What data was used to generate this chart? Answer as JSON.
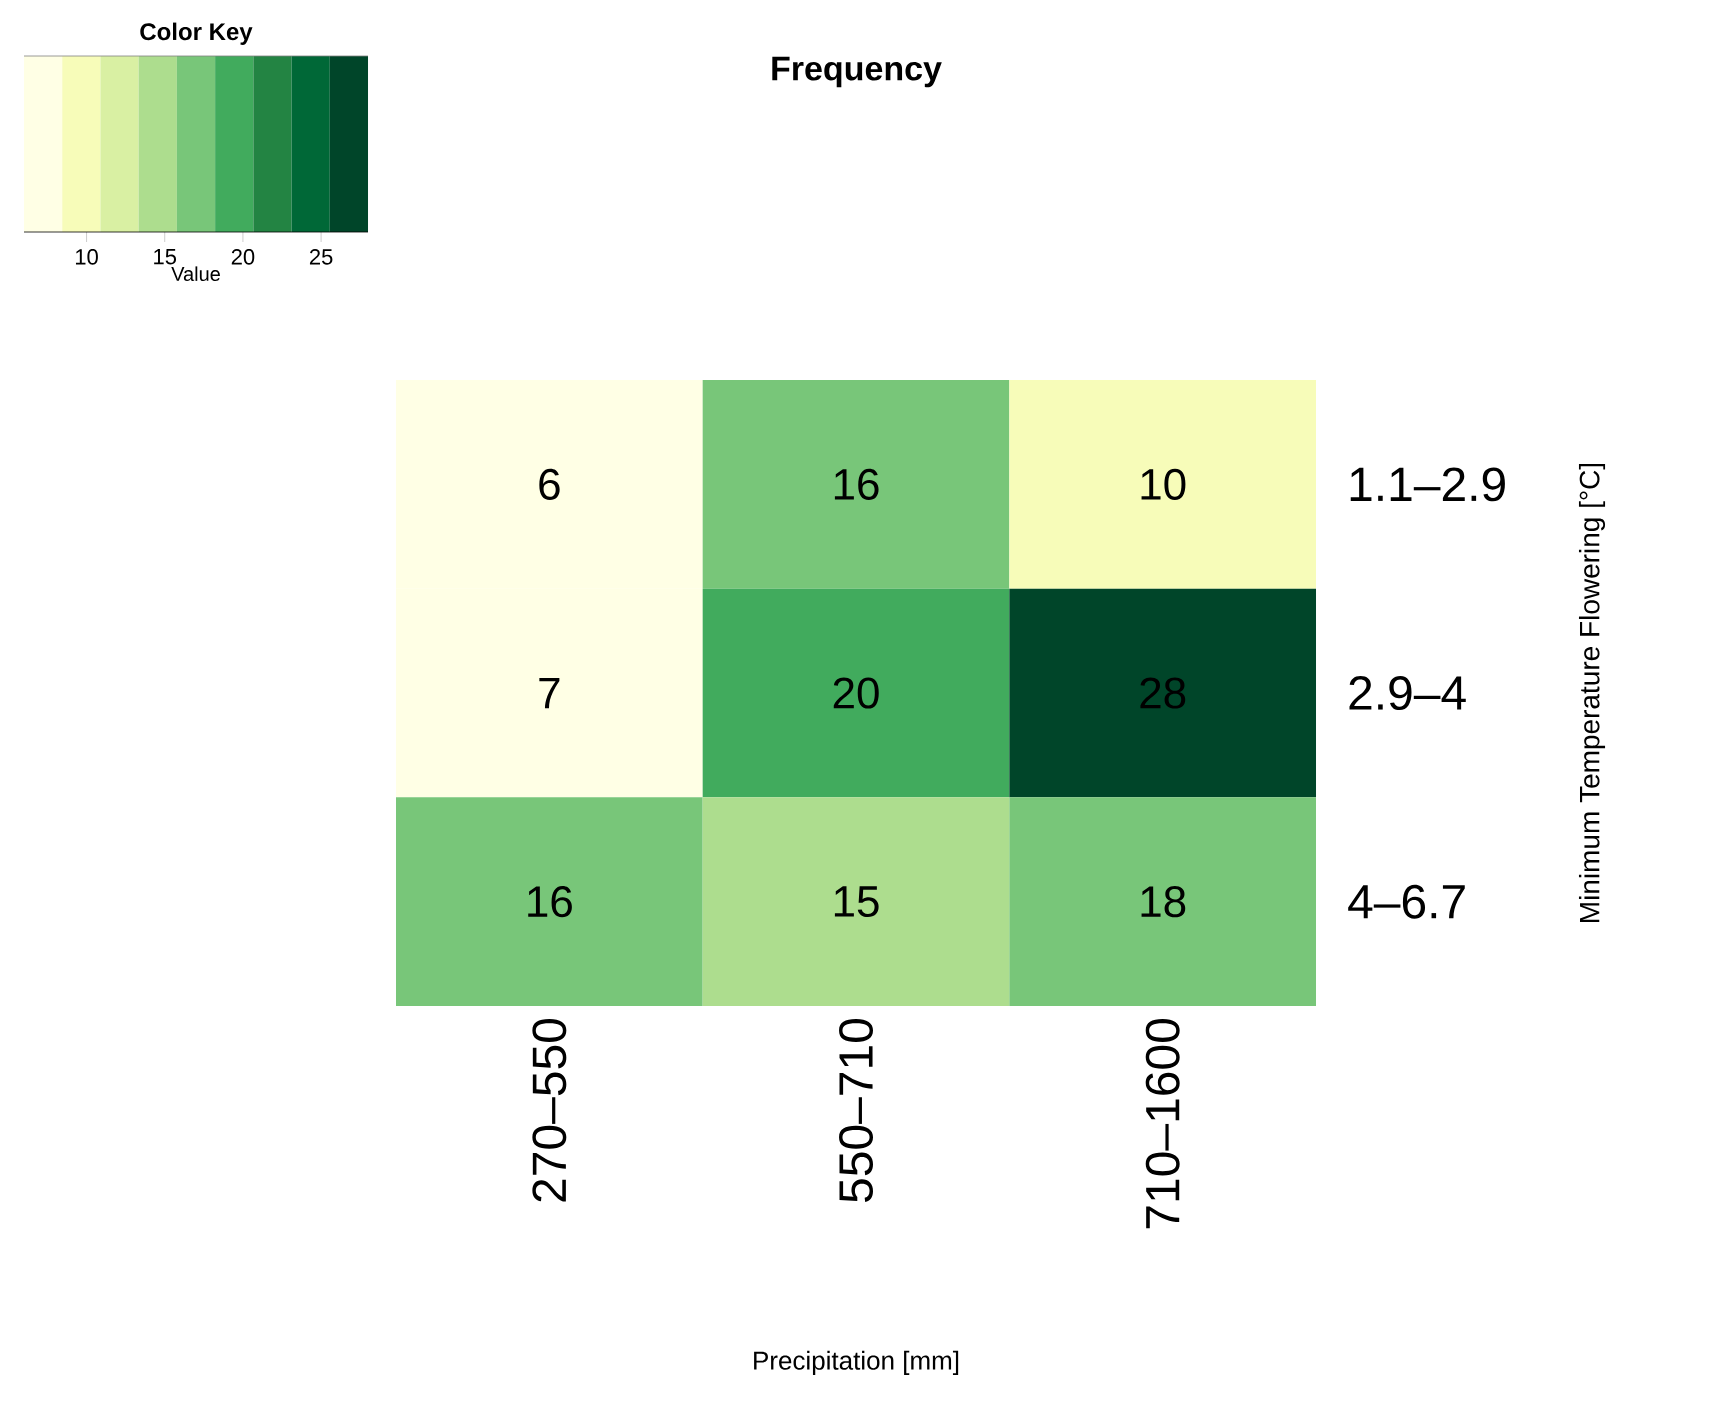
{
  "chart_data": {
    "type": "heatmap",
    "title": "Frequency",
    "xlabel": "Precipitation [mm]",
    "ylabel": "Minimum Temperature Flowering [°C]",
    "legend_title": "Color Key",
    "clabel": "Value",
    "categories": [
      "270–550",
      "550–710",
      "710–1600"
    ],
    "y_categories": [
      "1.1–2.9",
      "2.9–4",
      "4–6.7"
    ],
    "cells": [
      [
        6,
        16,
        10
      ],
      [
        7,
        20,
        28
      ],
      [
        16,
        15,
        18
      ]
    ],
    "data_labels": true,
    "clim": [
      6,
      28
    ],
    "cticks": [
      10,
      15,
      20,
      25
    ],
    "colors": [
      "#ffffe5",
      "#f7fcb9",
      "#d9f0a3",
      "#addd8e",
      "#78c679",
      "#41ab5d",
      "#238443",
      "#006837",
      "#004529"
    ]
  }
}
